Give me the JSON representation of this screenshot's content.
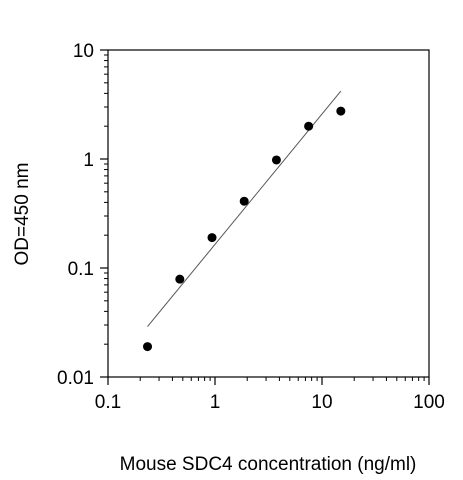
{
  "chart_data": {
    "type": "scatter",
    "title": "",
    "xlabel": "Mouse SDC4 concentration (ng/ml)",
    "ylabel": "OD=450 nm",
    "x_scale": "log",
    "y_scale": "log",
    "xlim": [
      0.1,
      100
    ],
    "ylim": [
      0.01,
      10
    ],
    "x_ticks": [
      0.1,
      1,
      10,
      100
    ],
    "x_tick_labels": [
      "0.1",
      "1",
      "10",
      "100"
    ],
    "y_ticks": [
      0.01,
      0.1,
      1,
      10
    ],
    "y_tick_labels": [
      "0.01",
      "0.1",
      "1",
      "10"
    ],
    "grid": false,
    "legend": "none",
    "series": [
      {
        "type": "scatter",
        "x": [
          0.234,
          0.469,
          0.938,
          1.875,
          3.75,
          7.5,
          15
        ],
        "y": [
          0.019,
          0.079,
          0.19,
          0.41,
          0.98,
          2.0,
          2.75
        ]
      }
    ],
    "fit_line": {
      "x": [
        0.234,
        15
      ],
      "y": [
        0.029,
        4.2
      ]
    },
    "colors": {
      "points": "#000000",
      "fit": "#555555",
      "axes": "#000000"
    }
  }
}
